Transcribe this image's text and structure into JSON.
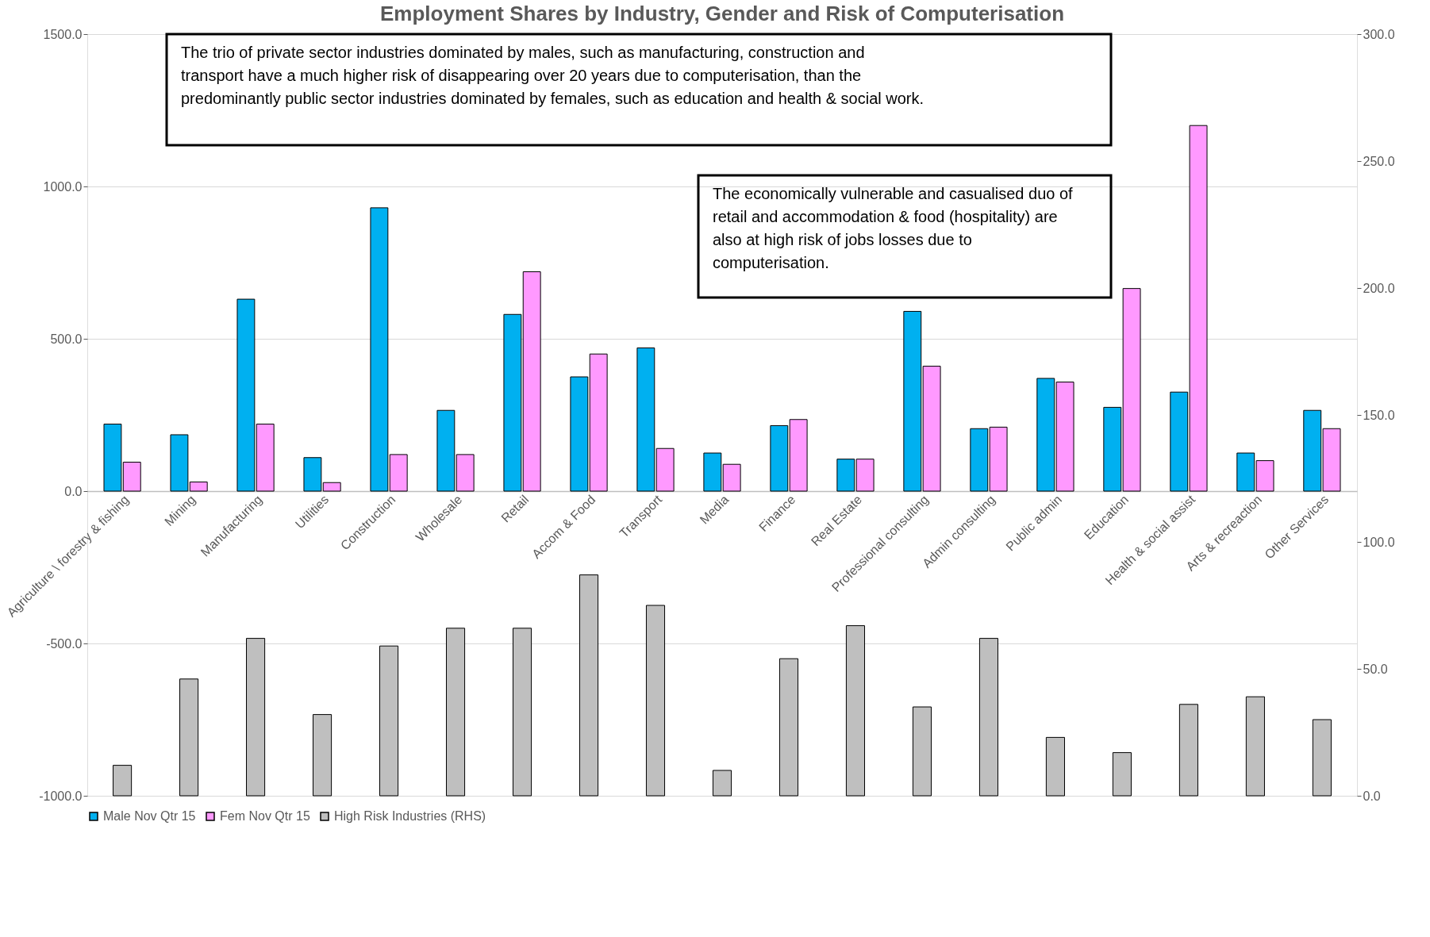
{
  "chart_data": {
    "type": "bar",
    "title": "Employment Shares by Industry, Gender and Risk of Computerisation",
    "categories": [
      "Agriculture \\ forestry & fishing",
      "Mining",
      "Manufacturing",
      "Utilities",
      "Construction",
      "Wholesale",
      "Retail",
      "Accom & Food",
      "Transport",
      "Media",
      "Finance",
      "Real Estate",
      "Professional consulting",
      "Admin consulting",
      "Public admin",
      "Education",
      "Health & social assist",
      "Arts & recreaction",
      "Other Services"
    ],
    "series": [
      {
        "name": "Male Nov Qtr 15",
        "color": "#00b0f0",
        "values": [
          220,
          185,
          630,
          110,
          930,
          265,
          580,
          375,
          470,
          125,
          215,
          105,
          590,
          205,
          370,
          275,
          325,
          125,
          265
        ]
      },
      {
        "name": "Fem Nov Qtr 15",
        "color": "#ff99ff",
        "values": [
          95,
          30,
          220,
          28,
          120,
          120,
          720,
          450,
          140,
          88,
          235,
          105,
          410,
          210,
          358,
          665,
          1200,
          100,
          205
        ]
      },
      {
        "name": "High Risk Industries (RHS)",
        "color": "#bfbfbf",
        "axis": "y2",
        "values": [
          12,
          46,
          62,
          32,
          59,
          66,
          66,
          87,
          75,
          10,
          54,
          67,
          35,
          62,
          23,
          17,
          36,
          39,
          30
        ]
      }
    ],
    "ylim": [
      -1000,
      1500
    ],
    "yticks": [
      {
        "value": -1000,
        "label": "-1000.0"
      },
      {
        "value": -500,
        "label": "-500.0"
      },
      {
        "value": 0,
        "label": "0.0"
      },
      {
        "value": 500,
        "label": "500.0"
      },
      {
        "value": 1000,
        "label": "1000.0"
      },
      {
        "value": 1500,
        "label": "1500.0"
      }
    ],
    "y2lim": [
      0,
      300
    ],
    "y2ticks": [
      {
        "value": 0,
        "label": "0.0"
      },
      {
        "value": 50,
        "label": "50.0"
      },
      {
        "value": 100,
        "label": "100.0"
      },
      {
        "value": 150,
        "label": "150.0"
      },
      {
        "value": 200,
        "label": "200.0"
      },
      {
        "value": 250,
        "label": "250.0"
      },
      {
        "value": 300,
        "label": "300.0"
      }
    ],
    "grid": "y",
    "legend": "bottom",
    "annotations": [
      "The trio of private sector industries dominated by males, such as manufacturing, construction and transport have a much higher risk of disappearing over 20 years due to computerisation, than the predominantly public sector industries dominated by females, such as education and health & social work.",
      "The economically vulnerable and casualised duo of retail and accommodation & food (hospitality) are also at high risk of jobs losses due to computerisation."
    ]
  }
}
